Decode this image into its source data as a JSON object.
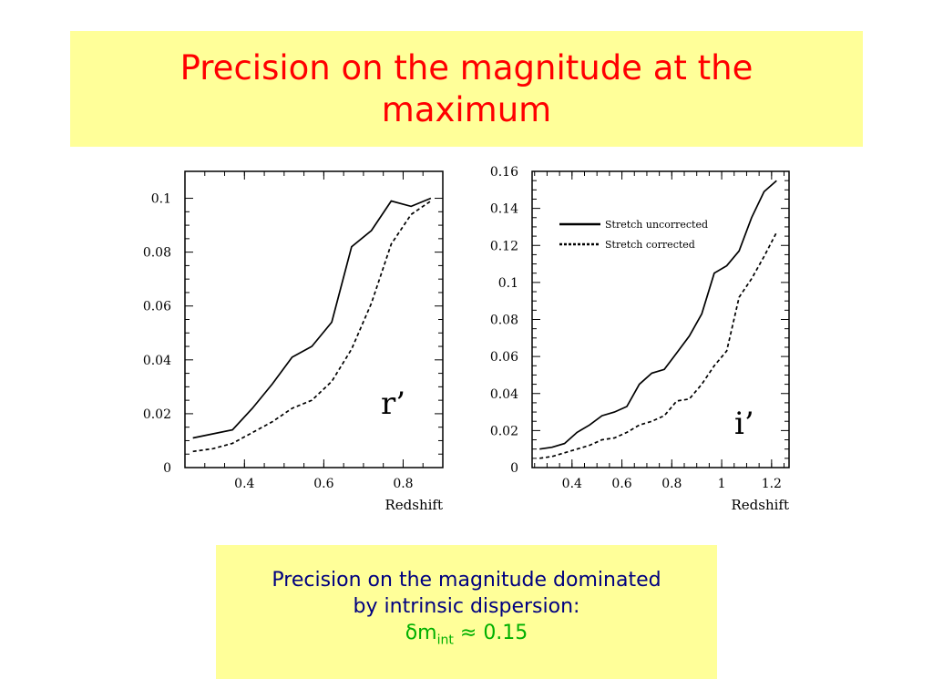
{
  "slide": {
    "title": "Precision on the magnitude at the maximum"
  },
  "note": {
    "line1": "Precision on the magnitude dominated",
    "line2": "by intrinsic dispersion:",
    "formula_symbol": "δ",
    "formula_var": "m",
    "formula_sub": "int",
    "formula_rel": "≈",
    "formula_value": "0.15"
  },
  "colors": {
    "title_text": "#ff0000",
    "box_background": "#ffff99",
    "note_text": "#000080",
    "formula_text": "#00b000"
  },
  "chart_data": [
    {
      "type": "line",
      "title": "",
      "annotation": "r’",
      "xlabel": "Redshift",
      "ylabel": "",
      "xlim": [
        0.25,
        0.9
      ],
      "ylim": [
        0,
        0.11
      ],
      "xticks": [
        0.4,
        0.6,
        0.8
      ],
      "xtick_labels": [
        "0.4",
        "0.6",
        "0.8"
      ],
      "yticks": [
        0,
        0.02,
        0.04,
        0.06,
        0.08,
        0.1
      ],
      "ytick_labels": [
        "0",
        "0.02",
        "0.04",
        "0.06",
        "0.08",
        "0.1"
      ],
      "grid": false,
      "series": [
        {
          "style": "solid",
          "x": [
            0.27,
            0.37,
            0.42,
            0.47,
            0.52,
            0.57,
            0.62,
            0.67,
            0.72,
            0.77,
            0.82,
            0.87
          ],
          "y": [
            0.011,
            0.014,
            0.022,
            0.031,
            0.041,
            0.045,
            0.054,
            0.082,
            0.088,
            0.099,
            0.097,
            0.1
          ]
        },
        {
          "style": "dashed",
          "x": [
            0.27,
            0.32,
            0.37,
            0.42,
            0.47,
            0.52,
            0.57,
            0.62,
            0.67,
            0.72,
            0.77,
            0.82,
            0.87
          ],
          "y": [
            0.006,
            0.007,
            0.009,
            0.013,
            0.017,
            0.022,
            0.025,
            0.032,
            0.044,
            0.061,
            0.083,
            0.094,
            0.099
          ]
        }
      ]
    },
    {
      "type": "line",
      "title": "",
      "annotation": "i’",
      "xlabel": "Redshift",
      "ylabel": "",
      "xlim": [
        0.24,
        1.27
      ],
      "ylim": [
        0,
        0.16
      ],
      "xticks": [
        0.4,
        0.6,
        0.8,
        1.0,
        1.2
      ],
      "xtick_labels": [
        "0.4",
        "0.6",
        "0.8",
        "1",
        "1.2"
      ],
      "yticks": [
        0,
        0.02,
        0.04,
        0.06,
        0.08,
        0.1,
        0.12,
        0.14,
        0.16
      ],
      "ytick_labels": [
        "0",
        "0.02",
        "0.04",
        "0.06",
        "0.08",
        "0.1",
        "0.12",
        "0.14",
        "0.16"
      ],
      "grid": false,
      "legend_position": "top-right",
      "series": [
        {
          "name": "Stretch uncorrected",
          "style": "solid",
          "x": [
            0.27,
            0.32,
            0.37,
            0.42,
            0.47,
            0.52,
            0.57,
            0.62,
            0.67,
            0.72,
            0.77,
            0.82,
            0.87,
            0.92,
            0.97,
            1.02,
            1.07,
            1.12,
            1.17,
            1.22
          ],
          "y": [
            0.01,
            0.011,
            0.013,
            0.019,
            0.023,
            0.028,
            0.03,
            0.033,
            0.045,
            0.051,
            0.053,
            0.062,
            0.071,
            0.083,
            0.105,
            0.109,
            0.117,
            0.135,
            0.149,
            0.155
          ]
        },
        {
          "name": "Stretch corrected",
          "style": "dashed",
          "x": [
            0.27,
            0.32,
            0.37,
            0.42,
            0.47,
            0.52,
            0.57,
            0.62,
            0.67,
            0.72,
            0.77,
            0.82,
            0.87,
            0.92,
            0.97,
            1.02,
            1.07,
            1.12,
            1.17,
            1.22
          ],
          "y": [
            0.005,
            0.006,
            0.008,
            0.01,
            0.012,
            0.015,
            0.016,
            0.019,
            0.023,
            0.025,
            0.028,
            0.036,
            0.037,
            0.045,
            0.055,
            0.063,
            0.092,
            0.102,
            0.114,
            0.127
          ]
        }
      ]
    }
  ]
}
